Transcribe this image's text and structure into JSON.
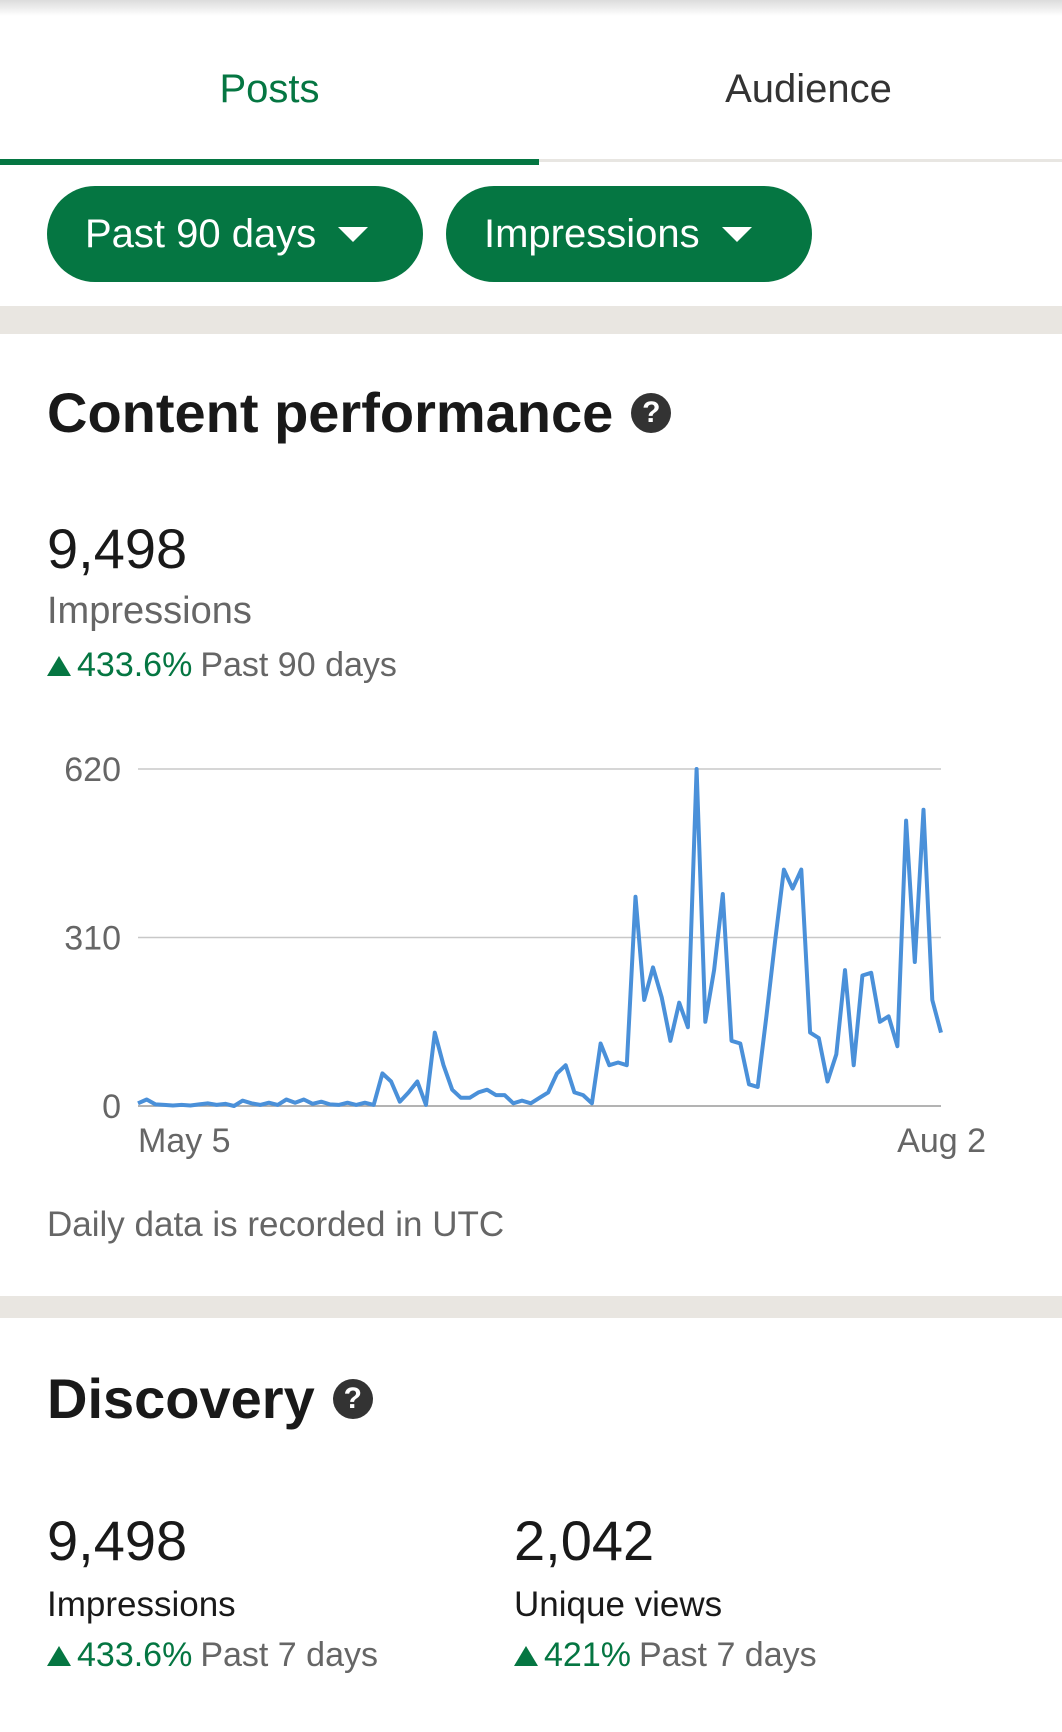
{
  "tabs": [
    {
      "label": "Posts",
      "active": true
    },
    {
      "label": "Audience",
      "active": false
    }
  ],
  "filters": {
    "period": "Past 90 days",
    "metric": "Impressions"
  },
  "content_performance": {
    "title": "Content performance",
    "value": "9,498",
    "label": "Impressions",
    "change": "433.6%",
    "change_period": "Past 90 days",
    "note": "Daily data is recorded in UTC"
  },
  "discovery": {
    "title": "Discovery",
    "stats": [
      {
        "value": "9,498",
        "label": "Impressions",
        "change": "433.6%",
        "period": "Past 7 days"
      },
      {
        "value": "2,042",
        "label": "Unique views",
        "change": "421%",
        "period": "Past 7 days"
      }
    ]
  },
  "colors": {
    "accent": "#057642",
    "line": "#4a90d9",
    "band": "#e9e6e1"
  },
  "icons": {
    "help": "help-circle-icon",
    "caret": "caret-down-icon",
    "up": "triangle-up-icon"
  },
  "chart_data": {
    "type": "line",
    "x_start": "May 5",
    "x_end": "Aug 2",
    "x_tick_labels": [
      "May 5",
      "Aug 2"
    ],
    "y_ticks": [
      "0",
      "310",
      "620"
    ],
    "ylim": [
      0,
      620
    ],
    "grid": true,
    "series": [
      {
        "values": [
          5,
          12,
          3,
          2,
          1,
          2,
          1,
          3,
          5,
          2,
          4,
          0,
          10,
          5,
          2,
          6,
          2,
          12,
          6,
          12,
          4,
          8,
          3,
          2,
          6,
          2,
          6,
          2,
          60,
          45,
          8,
          25,
          45,
          2,
          135,
          75,
          30,
          15,
          15,
          25,
          30,
          20,
          20,
          5,
          10,
          5,
          15,
          25,
          60,
          75,
          25,
          20,
          5,
          115,
          75,
          80,
          75,
          385,
          195,
          255,
          200,
          120,
          190,
          145,
          620,
          155,
          250,
          390,
          120,
          115,
          40,
          35,
          165,
          305,
          435,
          400,
          435,
          135,
          125,
          45,
          95,
          250,
          75,
          240,
          245,
          155,
          165,
          110,
          525,
          265,
          545,
          195,
          135
        ]
      }
    ]
  }
}
